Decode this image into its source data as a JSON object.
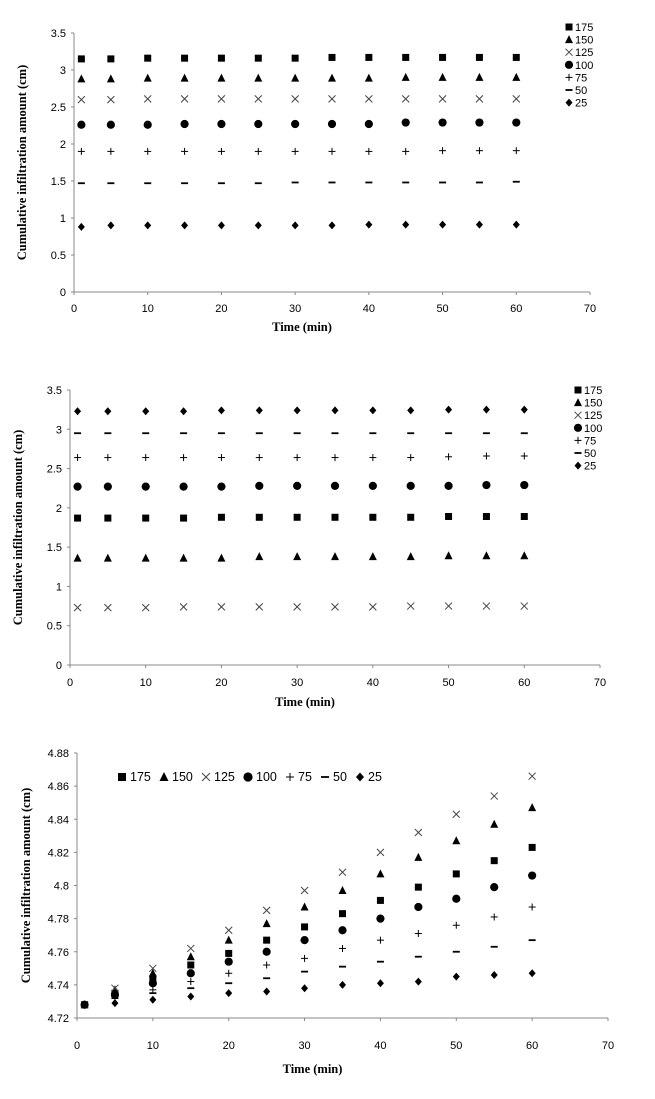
{
  "chart_data": [
    {
      "type": "scatter",
      "xlabel": "Time (min)",
      "ylabel": "Cumulative infiltration amount (cm)",
      "xlim": [
        0,
        70
      ],
      "ylim": [
        0,
        3.5
      ],
      "xticks": [
        "0",
        "10",
        "20",
        "30",
        "40",
        "50",
        "60",
        "70"
      ],
      "yticks": [
        "0",
        "0.5",
        "1",
        "1.5",
        "2",
        "2.5",
        "3",
        "3.5"
      ],
      "legend_position": "right",
      "legend_layout": "vertical",
      "x": [
        1,
        5,
        10,
        15,
        20,
        25,
        30,
        35,
        40,
        45,
        50,
        55,
        60
      ],
      "series": [
        {
          "name": "175",
          "marker": "square",
          "values": [
            3.15,
            3.15,
            3.16,
            3.16,
            3.16,
            3.16,
            3.16,
            3.17,
            3.17,
            3.17,
            3.17,
            3.17,
            3.17
          ]
        },
        {
          "name": "150",
          "marker": "triangle",
          "values": [
            2.88,
            2.88,
            2.89,
            2.89,
            2.89,
            2.89,
            2.89,
            2.89,
            2.89,
            2.9,
            2.9,
            2.9,
            2.9
          ]
        },
        {
          "name": "125",
          "marker": "x",
          "values": [
            2.6,
            2.6,
            2.61,
            2.61,
            2.61,
            2.61,
            2.61,
            2.61,
            2.61,
            2.61,
            2.61,
            2.61,
            2.61
          ]
        },
        {
          "name": "100",
          "marker": "circle",
          "values": [
            2.26,
            2.26,
            2.26,
            2.27,
            2.27,
            2.27,
            2.27,
            2.27,
            2.27,
            2.29,
            2.29,
            2.29,
            2.29
          ]
        },
        {
          "name": "75",
          "marker": "plus",
          "values": [
            1.9,
            1.9,
            1.9,
            1.9,
            1.9,
            1.9,
            1.9,
            1.9,
            1.9,
            1.9,
            1.91,
            1.91,
            1.91
          ]
        },
        {
          "name": "50",
          "marker": "dash",
          "values": [
            1.47,
            1.47,
            1.47,
            1.47,
            1.47,
            1.47,
            1.48,
            1.48,
            1.48,
            1.48,
            1.48,
            1.48,
            1.49
          ]
        },
        {
          "name": "25",
          "marker": "diamond",
          "values": [
            0.88,
            0.9,
            0.9,
            0.9,
            0.9,
            0.9,
            0.9,
            0.9,
            0.91,
            0.91,
            0.91,
            0.91,
            0.91
          ]
        }
      ]
    },
    {
      "type": "scatter",
      "xlabel": "Time (min)",
      "ylabel": "Cumulative infiltration amount (cm)",
      "xlim": [
        0,
        70
      ],
      "ylim": [
        0,
        3.5
      ],
      "xticks": [
        "0",
        "10",
        "20",
        "30",
        "40",
        "50",
        "60",
        "70"
      ],
      "yticks": [
        "0",
        "0.5",
        "1",
        "1.5",
        "2",
        "2.5",
        "3",
        "3.5"
      ],
      "legend_position": "right",
      "legend_layout": "vertical",
      "x": [
        1,
        5,
        10,
        15,
        20,
        25,
        30,
        35,
        40,
        45,
        50,
        55,
        60
      ],
      "series": [
        {
          "name": "175",
          "marker": "square",
          "values": [
            1.87,
            1.87,
            1.87,
            1.87,
            1.88,
            1.88,
            1.88,
            1.88,
            1.88,
            1.88,
            1.89,
            1.89,
            1.89
          ]
        },
        {
          "name": "150",
          "marker": "triangle",
          "values": [
            1.36,
            1.36,
            1.36,
            1.36,
            1.36,
            1.38,
            1.38,
            1.38,
            1.38,
            1.38,
            1.39,
            1.39,
            1.39
          ]
        },
        {
          "name": "125",
          "marker": "x",
          "values": [
            0.73,
            0.73,
            0.73,
            0.74,
            0.74,
            0.74,
            0.74,
            0.74,
            0.74,
            0.75,
            0.75,
            0.75,
            0.75
          ]
        },
        {
          "name": "100",
          "marker": "circle",
          "values": [
            2.27,
            2.27,
            2.27,
            2.27,
            2.27,
            2.28,
            2.28,
            2.28,
            2.28,
            2.28,
            2.28,
            2.29,
            2.29
          ]
        },
        {
          "name": "75",
          "marker": "plus",
          "values": [
            2.64,
            2.64,
            2.64,
            2.64,
            2.64,
            2.64,
            2.64,
            2.64,
            2.64,
            2.64,
            2.65,
            2.66,
            2.66
          ]
        },
        {
          "name": "50",
          "marker": "dash",
          "values": [
            2.95,
            2.95,
            2.95,
            2.95,
            2.95,
            2.95,
            2.95,
            2.95,
            2.95,
            2.95,
            2.95,
            2.95,
            2.95
          ]
        },
        {
          "name": "25",
          "marker": "diamond",
          "values": [
            3.23,
            3.23,
            3.23,
            3.23,
            3.24,
            3.24,
            3.24,
            3.24,
            3.24,
            3.24,
            3.25,
            3.25,
            3.25
          ]
        }
      ]
    },
    {
      "type": "scatter",
      "xlabel": "Time (min)",
      "ylabel": "Cumulative infiltration amount (cm)",
      "xlim": [
        0,
        70
      ],
      "ylim": [
        4.72,
        4.88
      ],
      "xticks": [
        "0",
        "10",
        "20",
        "30",
        "40",
        "50",
        "60",
        "70"
      ],
      "yticks": [
        "4.72",
        "4.74",
        "4.76",
        "4.78",
        "4.8",
        "4.82",
        "4.84",
        "4.86",
        "4.88"
      ],
      "legend_position": "top-left",
      "legend_layout": "horizontal",
      "x": [
        1,
        5,
        10,
        15,
        20,
        25,
        30,
        35,
        40,
        45,
        50,
        55,
        60
      ],
      "series": [
        {
          "name": "175",
          "marker": "square",
          "values": [
            4.728,
            4.735,
            4.744,
            4.752,
            4.759,
            4.767,
            4.775,
            4.783,
            4.791,
            4.799,
            4.807,
            4.815,
            4.823
          ]
        },
        {
          "name": "150",
          "marker": "triangle",
          "values": [
            4.728,
            4.737,
            4.747,
            4.757,
            4.767,
            4.777,
            4.787,
            4.797,
            4.807,
            4.817,
            4.827,
            4.837,
            4.847
          ]
        },
        {
          "name": "125",
          "marker": "x",
          "values": [
            4.728,
            4.738,
            4.75,
            4.762,
            4.773,
            4.785,
            4.797,
            4.808,
            4.82,
            4.832,
            4.843,
            4.854,
            4.866
          ]
        },
        {
          "name": "100",
          "marker": "circle",
          "values": [
            4.728,
            4.734,
            4.741,
            4.747,
            4.754,
            4.76,
            4.767,
            4.773,
            4.78,
            4.787,
            4.792,
            4.799,
            4.806
          ]
        },
        {
          "name": "75",
          "marker": "plus",
          "values": [
            4.728,
            4.733,
            4.737,
            4.742,
            4.747,
            4.752,
            4.756,
            4.762,
            4.767,
            4.771,
            4.776,
            4.781,
            4.787
          ]
        },
        {
          "name": "50",
          "marker": "dash",
          "values": [
            4.728,
            4.732,
            4.735,
            4.738,
            4.741,
            4.744,
            4.748,
            4.751,
            4.754,
            4.757,
            4.76,
            4.763,
            4.767
          ]
        },
        {
          "name": "25",
          "marker": "diamond",
          "values": [
            4.728,
            4.729,
            4.731,
            4.733,
            4.735,
            4.736,
            4.738,
            4.74,
            4.741,
            4.742,
            4.745,
            4.746,
            4.747
          ]
        }
      ]
    }
  ]
}
